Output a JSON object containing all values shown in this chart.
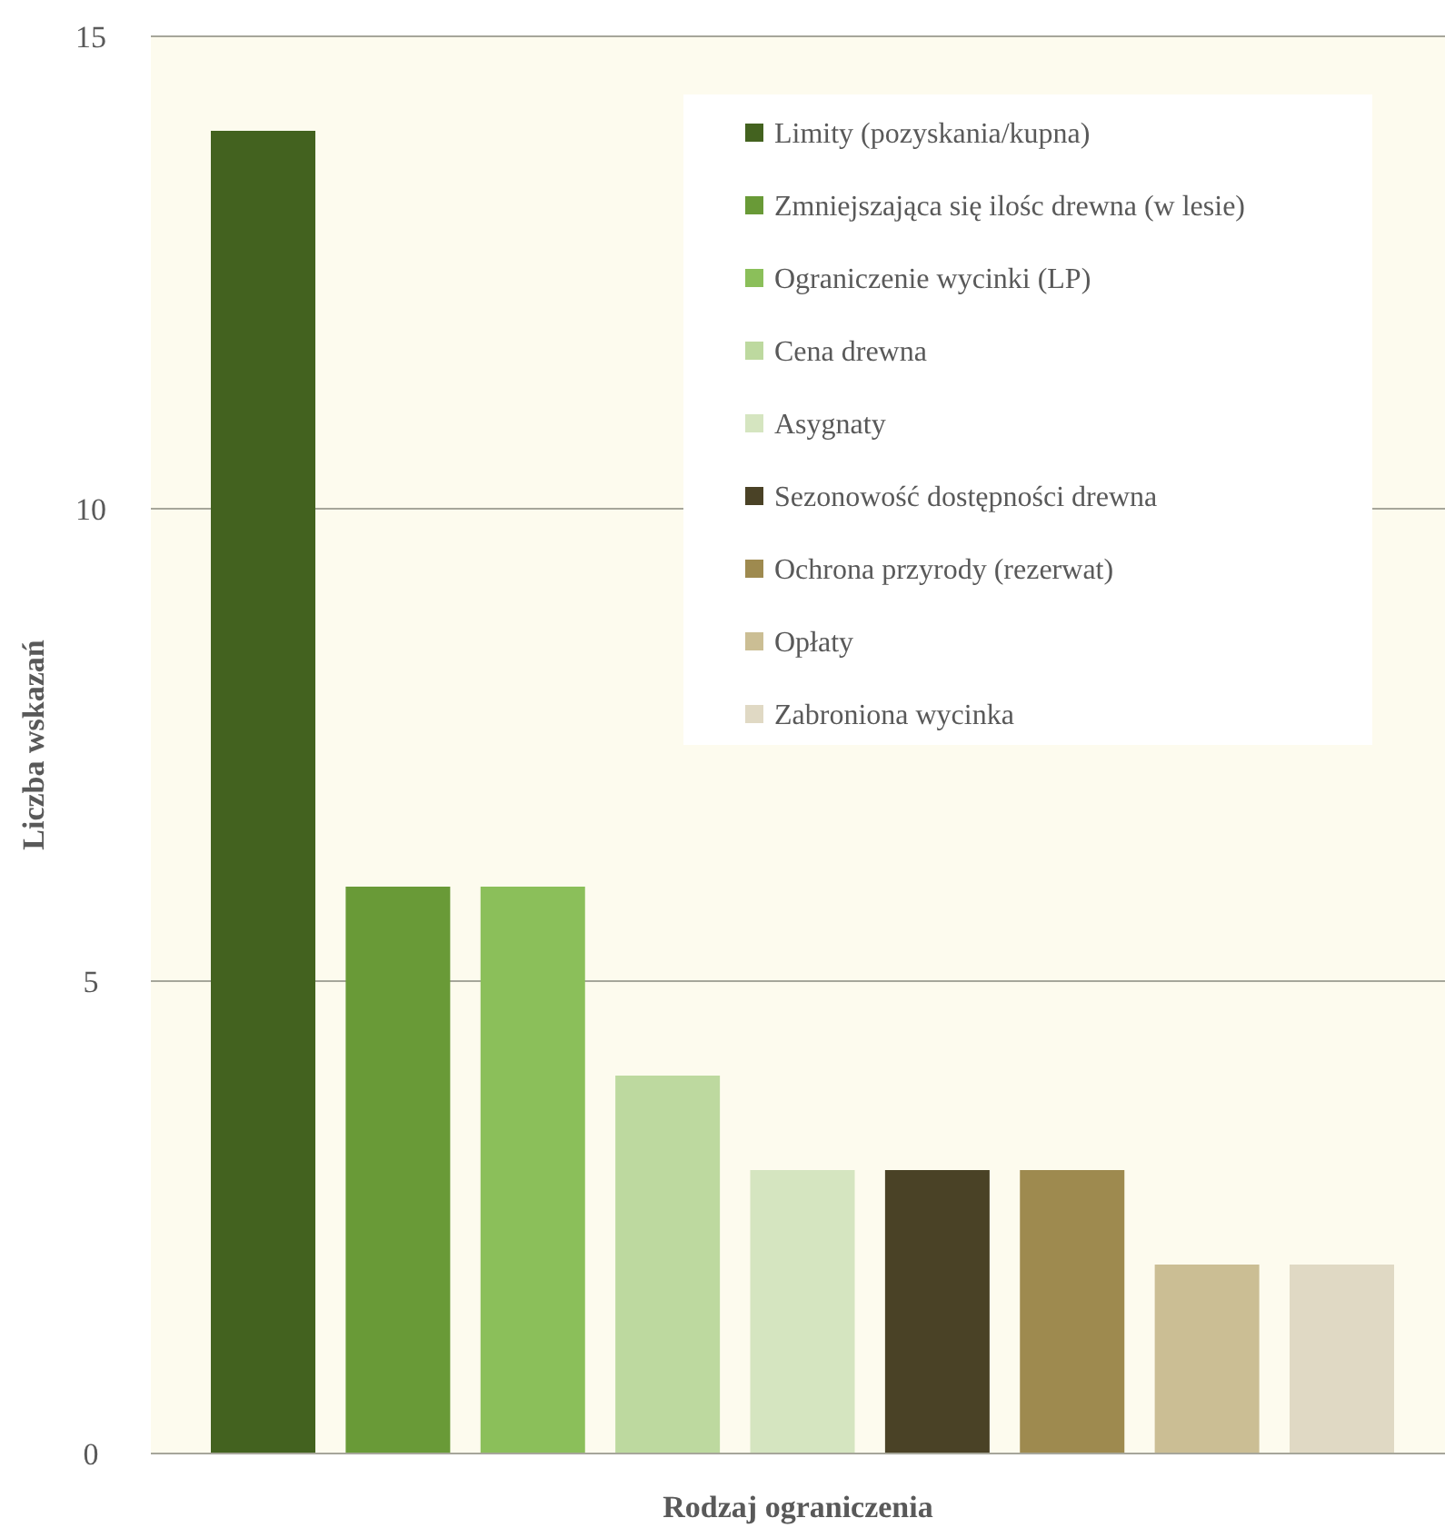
{
  "chart_data": {
    "type": "bar",
    "xlabel": "Rodzaj ograniczenia",
    "ylabel": "Liczba wskazań",
    "categories": [
      null,
      null,
      null,
      null,
      null,
      null,
      null,
      null,
      null
    ],
    "stacked": true,
    "ylim": [
      0,
      15
    ],
    "yticks": [
      0,
      5,
      10,
      15
    ],
    "grid": "y",
    "legend": "top right",
    "series": [
      {
        "name": "Limity (pozyskania/kupna)",
        "color": "#43621f",
        "values": [
          14,
          null,
          null,
          null,
          null,
          null,
          null,
          null,
          null
        ]
      },
      {
        "name": "Zmniejszająca się ilośc drewna (w lesie)",
        "color": "#699a37",
        "values": [
          null,
          6,
          null,
          null,
          null,
          null,
          null,
          null,
          null
        ]
      },
      {
        "name": "Ograniczenie wycinki (LP)",
        "color": "#8bbf5a",
        "values": [
          null,
          null,
          6,
          null,
          null,
          null,
          null,
          null,
          null
        ]
      },
      {
        "name": "Cena drewna",
        "color": "#bdd99f",
        "values": [
          null,
          null,
          null,
          4,
          null,
          null,
          null,
          null,
          null
        ]
      },
      {
        "name": "Asygnaty",
        "color": "#d5e5c0",
        "values": [
          null,
          null,
          null,
          null,
          3,
          null,
          null,
          null,
          null
        ]
      },
      {
        "name": "Sezonowość dostępności drewna",
        "color": "#4a4226",
        "values": [
          null,
          null,
          null,
          null,
          null,
          3,
          null,
          null,
          null
        ]
      },
      {
        "name": "Ochrona przyrody (rezerwat)",
        "color": "#9e8a4f",
        "values": [
          null,
          null,
          null,
          null,
          null,
          null,
          3,
          null,
          null
        ]
      },
      {
        "name": "Opłaty",
        "color": "#cbbe94",
        "values": [
          null,
          null,
          null,
          null,
          null,
          null,
          null,
          2,
          null
        ]
      },
      {
        "name": "Zabroniona wycinka",
        "color": "#e0d9c4",
        "values": [
          null,
          null,
          null,
          null,
          null,
          null,
          null,
          null,
          2
        ]
      }
    ]
  }
}
